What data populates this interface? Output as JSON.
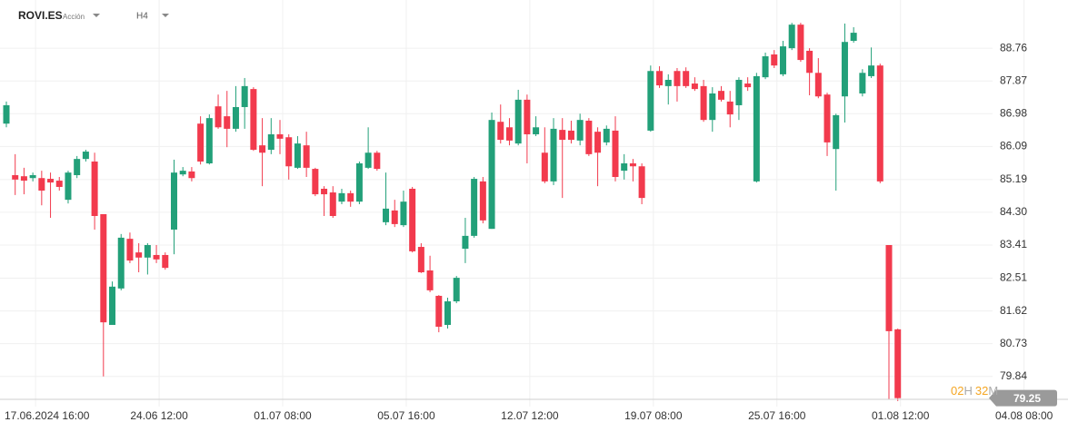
{
  "header": {
    "symbol": "ROVI.ES",
    "asset_type": "Acción",
    "timeframe": "H4"
  },
  "countdown": {
    "hours": "02",
    "hours_unit": "H",
    "minutes": "32",
    "minutes_unit": "M"
  },
  "chart_data": {
    "type": "candlestick",
    "up_color": "#22a079",
    "down_color": "#f23a4d",
    "grid": true,
    "ylim": [
      79.02,
      90.07
    ],
    "yticks": [
      79.84,
      80.73,
      81.62,
      82.51,
      83.41,
      {
        "value": 84.3,
        "label": "84.30"
      },
      85.19,
      86.09,
      86.98,
      87.87,
      88.76
    ],
    "categories": [
      null,
      null,
      null,
      "17.06.2024 16:00",
      null,
      null,
      null,
      null,
      null,
      null,
      null,
      null,
      null,
      null,
      null,
      null,
      null,
      "24.06 12:00",
      null,
      null,
      null,
      null,
      null,
      null,
      null,
      null,
      null,
      null,
      null,
      null,
      null,
      "01.07 08:00",
      null,
      null,
      null,
      null,
      null,
      null,
      null,
      null,
      null,
      null,
      null,
      null,
      null,
      "05.07 16:00",
      null,
      null,
      null,
      null,
      null,
      null,
      null,
      null,
      null,
      null,
      null,
      null,
      null,
      "12.07 12:00",
      null,
      null,
      null,
      null,
      null,
      null,
      null,
      null,
      null,
      null,
      null,
      null,
      null,
      "19.07 08:00",
      null,
      null,
      null,
      null,
      null,
      null,
      null,
      null,
      null,
      null,
      null,
      null,
      null,
      "25.07 16:00",
      null,
      null,
      null,
      null,
      null,
      null,
      null,
      null,
      null,
      null,
      null,
      null,
      null,
      "01.08 12:00",
      null,
      null,
      null,
      null,
      null,
      null,
      null,
      null,
      null,
      null,
      null,
      null,
      null,
      "04.08 08:00"
    ],
    "candles": {
      "open": [
        86.71,
        85.31,
        85.28,
        85.23,
        85.23,
        85.21,
        85.16,
        84.64,
        85.31,
        85.75,
        85.68,
        84.25,
        81.24,
        82.23,
        83.58,
        83.21,
        83.07,
        83.14,
        83.14,
        83.83,
        85.33,
        85.41,
        86.71,
        85.63,
        87.18,
        86.91,
        86.57,
        87.16,
        87.65,
        86.12,
        86.0,
        86.42,
        86.34,
        85.51,
        86.12,
        85.48,
        84.94,
        84.84,
        84.59,
        84.82,
        84.59,
        85.51,
        85.92,
        84.03,
        84.35,
        83.95,
        84.94,
        83.36,
        82.72,
        82.03,
        81.24,
        81.88,
        83.31,
        83.66,
        85.14,
        83.85,
        86.76,
        86.61,
        86.17,
        87.36,
        86.42,
        85.92,
        85.14,
        86.54,
        86.52,
        86.25,
        86.79,
        86.49,
        86.2,
        86.52,
        85.43,
        85.63,
        85.55,
        86.52,
        88.14,
        87.73,
        88.14,
        88.14,
        87.8,
        87.73,
        86.81,
        87.6,
        87.31,
        87.21,
        87.8,
        85.14,
        87.97,
        88.59,
        88.05,
        88.76,
        89.4,
        88.69,
        88.09,
        87.5,
        86.02,
        87.45,
        88.96,
        87.53,
        88.0,
        88.29,
        83.41,
        81.12,
        null,
        null,
        null,
        null,
        null,
        null,
        null,
        null,
        null,
        null,
        null,
        null,
        null,
        null
      ],
      "high": [
        87.31,
        85.88,
        85.51,
        85.38,
        85.43,
        85.38,
        85.26,
        85.43,
        85.83,
        86.0,
        85.92,
        84.25,
        82.42,
        83.71,
        83.75,
        83.46,
        83.46,
        83.41,
        83.21,
        85.73,
        85.53,
        85.53,
        86.91,
        86.96,
        87.5,
        87.6,
        87.73,
        87.95,
        87.7,
        86.86,
        86.86,
        86.81,
        86.42,
        86.37,
        86.49,
        85.51,
        85.01,
        85.01,
        84.94,
        84.89,
        85.68,
        86.61,
        85.97,
        85.38,
        84.64,
        84.89,
        84.99,
        83.46,
        83.12,
        82.05,
        81.98,
        82.57,
        84.15,
        85.26,
        85.26,
        87.01,
        87.23,
        86.86,
        87.63,
        87.5,
        86.91,
        86.61,
        86.86,
        86.86,
        86.79,
        86.98,
        86.86,
        86.61,
        86.66,
        86.91,
        85.88,
        85.75,
        85.63,
        88.29,
        88.27,
        88.05,
        88.22,
        88.24,
        87.97,
        87.9,
        87.7,
        87.73,
        87.6,
        87.97,
        87.97,
        88.09,
        88.64,
        88.71,
        88.96,
        89.45,
        89.45,
        88.76,
        88.49,
        87.55,
        86.98,
        89.43,
        89.33,
        88.19,
        88.78,
        88.34,
        83.41,
        81.14,
        null,
        null,
        null,
        null,
        null,
        null,
        null,
        null,
        null,
        null,
        null,
        null,
        null,
        null
      ],
      "low": [
        86.61,
        84.77,
        84.79,
        85.14,
        84.49,
        84.15,
        84.89,
        84.54,
        85.23,
        85.68,
        83.83,
        79.84,
        81.24,
        82.18,
        82.92,
        82.67,
        82.61,
        82.92,
        82.74,
        83.16,
        85.28,
        85.14,
        85.6,
        85.6,
        86.57,
        86.07,
        86.49,
        86.57,
        85.97,
        85.01,
        85.88,
        85.88,
        85.19,
        85.48,
        85.26,
        84.74,
        84.2,
        84.15,
        84.52,
        84.45,
        84.52,
        85.48,
        85.43,
        83.95,
        83.9,
        83.9,
        83.21,
        82.65,
        82.13,
        81.04,
        81.14,
        81.83,
        82.92,
        83.61,
        84.0,
        83.85,
        86.17,
        86.12,
        86.12,
        85.63,
        86.37,
        85.09,
        85.04,
        84.69,
        86.17,
        86.12,
        85.83,
        85.01,
        86.12,
        85.14,
        85.19,
        85.14,
        84.52,
        86.49,
        87.68,
        87.23,
        87.31,
        87.68,
        87.6,
        86.76,
        86.49,
        87.31,
        86.61,
        86.81,
        87.6,
        85.11,
        87.92,
        88.22,
        88.0,
        88.71,
        88.39,
        87.48,
        87.4,
        85.83,
        84.89,
        86.74,
        88.91,
        87.45,
        87.95,
        85.09,
        79.22,
        79.17,
        null,
        null,
        null,
        null,
        null,
        null,
        null,
        null,
        null,
        null,
        null,
        null,
        null,
        null
      ],
      "close": [
        87.21,
        85.19,
        85.16,
        85.31,
        84.89,
        85.11,
        84.99,
        85.38,
        85.75,
        85.95,
        84.2,
        81.31,
        82.28,
        83.61,
        82.99,
        83.07,
        83.41,
        83.02,
        82.79,
        85.38,
        85.43,
        85.23,
        85.68,
        86.86,
        86.61,
        86.57,
        87.16,
        87.73,
        86.0,
        85.92,
        86.42,
        86.3,
        85.55,
        86.17,
        85.51,
        84.79,
        84.79,
        84.2,
        84.82,
        84.59,
        85.63,
        85.92,
        85.48,
        84.4,
        83.98,
        84.59,
        83.24,
        82.67,
        82.18,
        81.19,
        81.88,
        82.52,
        83.66,
        85.21,
        84.08,
        86.81,
        86.27,
        86.25,
        87.36,
        86.42,
        86.61,
        85.14,
        86.57,
        86.27,
        86.27,
        86.81,
        85.88,
        85.92,
        86.57,
        85.26,
        85.63,
        85.55,
        84.69,
        88.14,
        87.75,
        87.9,
        87.73,
        87.73,
        87.65,
        86.81,
        87.53,
        87.36,
        86.96,
        87.9,
        87.7,
        88.0,
        88.54,
        88.29,
        88.81,
        89.4,
        88.44,
        88.09,
        87.45,
        86.2,
        86.94,
        88.93,
        89.18,
        88.09,
        88.29,
        85.14,
        81.07,
        79.25,
        null,
        null,
        null,
        null,
        null,
        null,
        null,
        null,
        null,
        null,
        null,
        null,
        null,
        null
      ]
    }
  }
}
